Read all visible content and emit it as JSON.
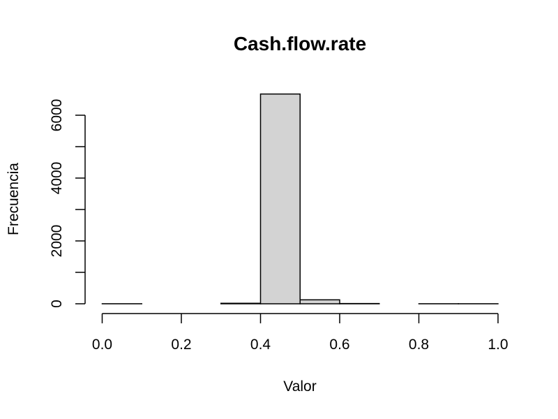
{
  "chart_data": {
    "type": "bar",
    "title": "Cash.flow.rate",
    "xlabel": "Valor",
    "ylabel": "Frecuencia",
    "bins": [
      {
        "x0": 0.0,
        "x1": 0.1,
        "count": 1
      },
      {
        "x0": 0.1,
        "x1": 0.2,
        "count": 0
      },
      {
        "x0": 0.2,
        "x1": 0.3,
        "count": 0
      },
      {
        "x0": 0.3,
        "x1": 0.4,
        "count": 16
      },
      {
        "x0": 0.4,
        "x1": 0.5,
        "count": 6675
      },
      {
        "x0": 0.5,
        "x1": 0.6,
        "count": 126
      },
      {
        "x0": 0.6,
        "x1": 0.7,
        "count": 8
      },
      {
        "x0": 0.7,
        "x1": 0.8,
        "count": 0
      },
      {
        "x0": 0.8,
        "x1": 0.9,
        "count": 1
      },
      {
        "x0": 0.9,
        "x1": 1.0,
        "count": 1
      }
    ],
    "xlim": [
      0.0,
      1.0
    ],
    "ylim": [
      0,
      6675
    ],
    "x_ticks": [
      0.0,
      0.2,
      0.4,
      0.6,
      0.8,
      1.0
    ],
    "x_tick_labels": [
      "0.0",
      "0.2",
      "0.4",
      "0.6",
      "0.8",
      "1.0"
    ],
    "y_ticks": [
      0,
      1000,
      2000,
      3000,
      4000,
      5000,
      6000
    ],
    "y_tick_labels": [
      "0",
      "2000",
      "4000",
      "6000"
    ],
    "y_labeled_ticks": [
      0,
      2000,
      4000,
      6000
    ],
    "bar_fill": "#d3d3d3",
    "grid": false,
    "legend": "none"
  }
}
